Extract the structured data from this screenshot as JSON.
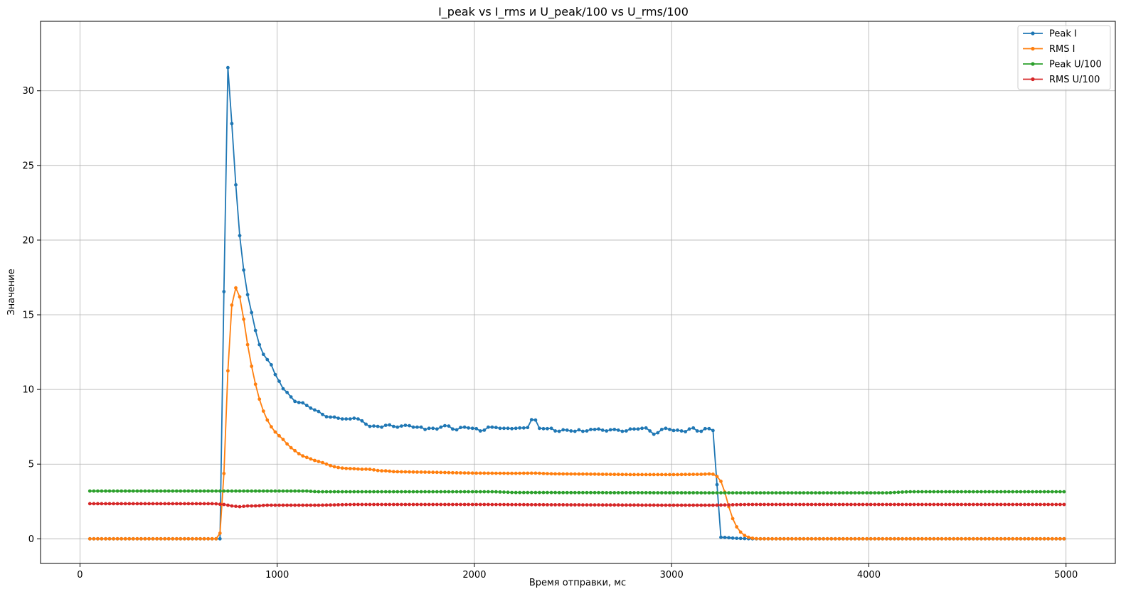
{
  "chart_data": {
    "type": "line",
    "title": "I_peak vs I_rms и U_peak/100 vs U_rms/100",
    "xlabel": "Время отправки, мс",
    "ylabel": "Значение",
    "xlim": [
      -200,
      5250
    ],
    "ylim": [
      -1.65,
      34.65
    ],
    "xticks": [
      0,
      1000,
      2000,
      3000,
      4000,
      5000
    ],
    "xtick_labels": [
      "0",
      "1000",
      "2000",
      "3000",
      "4000",
      "5000"
    ],
    "yticks": [
      0,
      5,
      10,
      15,
      20,
      25,
      30
    ],
    "ytick_labels": [
      "0",
      "5",
      "10",
      "15",
      "20",
      "25",
      "30"
    ],
    "grid": true,
    "legend_position": "upper right",
    "x_start": 50,
    "x_step": 20,
    "series": [
      {
        "name": "Peak I",
        "color": "#1f77b4",
        "keypoints": [
          [
            50,
            0
          ],
          [
            680,
            0
          ],
          [
            700,
            0
          ],
          [
            720,
            0
          ],
          [
            740,
            33.1
          ],
          [
            760,
            30
          ],
          [
            780,
            25.6
          ],
          [
            800,
            21.8
          ],
          [
            820,
            18.8
          ],
          [
            840,
            17.2
          ],
          [
            860,
            15.5
          ],
          [
            880,
            14.8
          ],
          [
            900,
            13.1
          ],
          [
            920,
            12.9
          ],
          [
            940,
            11.8
          ],
          [
            960,
            12.2
          ],
          [
            980,
            11.1
          ],
          [
            1000,
            10.9
          ],
          [
            1020,
            10.2
          ],
          [
            1040,
            9.9
          ],
          [
            1060,
            9.7
          ],
          [
            1080,
            9.3
          ],
          [
            1100,
            9.1
          ],
          [
            1120,
            9.15
          ],
          [
            1140,
            9.05
          ],
          [
            1160,
            8.8
          ],
          [
            1180,
            8.7
          ],
          [
            1200,
            8.55
          ],
          [
            1220,
            8.5
          ],
          [
            1240,
            8.15
          ],
          [
            1260,
            8.2
          ],
          [
            1280,
            8.1
          ],
          [
            1300,
            8.2
          ],
          [
            1320,
            7.95
          ],
          [
            1340,
            8.1
          ],
          [
            1360,
            7.95
          ],
          [
            1380,
            8.1
          ],
          [
            1400,
            8.05
          ],
          [
            1420,
            8.0
          ],
          [
            1440,
            7.8
          ],
          [
            1460,
            7.55
          ],
          [
            1480,
            7.5
          ],
          [
            1500,
            7.6
          ],
          [
            1520,
            7.45
          ],
          [
            1540,
            7.5
          ],
          [
            1560,
            7.7
          ],
          [
            1580,
            7.55
          ],
          [
            1600,
            7.5
          ],
          [
            1620,
            7.45
          ],
          [
            1640,
            7.65
          ],
          [
            1660,
            7.55
          ],
          [
            1680,
            7.6
          ],
          [
            1700,
            7.35
          ],
          [
            1720,
            7.6
          ],
          [
            1740,
            7.35
          ],
          [
            1760,
            7.3
          ],
          [
            1780,
            7.5
          ],
          [
            1800,
            7.3
          ],
          [
            1820,
            7.4
          ],
          [
            1840,
            7.55
          ],
          [
            1860,
            7.6
          ],
          [
            1880,
            7.5
          ],
          [
            1900,
            7.2
          ],
          [
            1920,
            7.4
          ],
          [
            1940,
            7.5
          ],
          [
            1960,
            7.45
          ],
          [
            1980,
            7.4
          ],
          [
            2000,
            7.4
          ],
          [
            2020,
            7.35
          ],
          [
            2040,
            7.1
          ],
          [
            2060,
            7.45
          ],
          [
            2080,
            7.5
          ],
          [
            2100,
            7.45
          ],
          [
            2120,
            7.45
          ],
          [
            2140,
            7.35
          ],
          [
            2160,
            7.45
          ],
          [
            2180,
            7.35
          ],
          [
            2200,
            7.4
          ],
          [
            2220,
            7.4
          ],
          [
            2240,
            7.45
          ],
          [
            2260,
            7.4
          ],
          [
            2280,
            7.5
          ],
          [
            2300,
            8.45
          ],
          [
            2320,
            7.45
          ],
          [
            2340,
            7.35
          ],
          [
            2360,
            7.4
          ],
          [
            2380,
            7.35
          ],
          [
            2400,
            7.45
          ],
          [
            2420,
            7.0
          ],
          [
            2440,
            7.4
          ],
          [
            2460,
            7.2
          ],
          [
            2480,
            7.35
          ],
          [
            2500,
            7.1
          ],
          [
            2520,
            7.3
          ],
          [
            2540,
            7.3
          ],
          [
            2560,
            7.1
          ],
          [
            2580,
            7.35
          ],
          [
            2600,
            7.3
          ],
          [
            2620,
            7.35
          ],
          [
            2640,
            7.35
          ],
          [
            2660,
            7.2
          ],
          [
            2680,
            7.25
          ],
          [
            2700,
            7.35
          ],
          [
            2720,
            7.3
          ],
          [
            2740,
            7.25
          ],
          [
            2760,
            7.15
          ],
          [
            2780,
            7.3
          ],
          [
            2800,
            7.4
          ],
          [
            2820,
            7.3
          ],
          [
            2840,
            7.4
          ],
          [
            2860,
            7.4
          ],
          [
            2880,
            7.45
          ],
          [
            2900,
            7.0
          ],
          [
            2920,
            7.0
          ],
          [
            2940,
            7.2
          ],
          [
            2960,
            7.45
          ],
          [
            2980,
            7.35
          ],
          [
            3000,
            7.3
          ],
          [
            3020,
            7.2
          ],
          [
            3040,
            7.35
          ],
          [
            3060,
            7.1
          ],
          [
            3080,
            7.25
          ],
          [
            3100,
            7.45
          ],
          [
            3120,
            7.4
          ],
          [
            3140,
            7.05
          ],
          [
            3160,
            7.35
          ],
          [
            3180,
            7.4
          ],
          [
            3200,
            7.35
          ],
          [
            3220,
            7.15
          ],
          [
            3240,
            0.1
          ],
          [
            3260,
            0.1
          ],
          [
            3280,
            0.08
          ],
          [
            3300,
            0.06
          ],
          [
            3320,
            0.04
          ],
          [
            3340,
            0.03
          ],
          [
            3360,
            0.02
          ],
          [
            3380,
            0.01
          ],
          [
            3400,
            0
          ],
          [
            5000,
            0
          ]
        ]
      },
      {
        "name": "RMS I",
        "color": "#ff7f0e",
        "keypoints": [
          [
            50,
            0
          ],
          [
            680,
            0
          ],
          [
            700,
            0
          ],
          [
            720,
            0.75
          ],
          [
            740,
            8.0
          ],
          [
            760,
            14.5
          ],
          [
            780,
            16.8
          ],
          [
            800,
            16.8
          ],
          [
            820,
            15.6
          ],
          [
            840,
            13.8
          ],
          [
            860,
            12.2
          ],
          [
            880,
            10.9
          ],
          [
            900,
            9.8
          ],
          [
            920,
            8.9
          ],
          [
            940,
            8.2
          ],
          [
            960,
            7.7
          ],
          [
            980,
            7.3
          ],
          [
            1000,
            7.0
          ],
          [
            1020,
            6.8
          ],
          [
            1040,
            6.5
          ],
          [
            1060,
            6.2
          ],
          [
            1080,
            6.0
          ],
          [
            1100,
            5.8
          ],
          [
            1120,
            5.6
          ],
          [
            1140,
            5.5
          ],
          [
            1160,
            5.4
          ],
          [
            1180,
            5.3
          ],
          [
            1200,
            5.2
          ],
          [
            1220,
            5.15
          ],
          [
            1240,
            5.05
          ],
          [
            1260,
            4.95
          ],
          [
            1280,
            4.85
          ],
          [
            1300,
            4.8
          ],
          [
            1320,
            4.75
          ],
          [
            1340,
            4.72
          ],
          [
            1360,
            4.7
          ],
          [
            1380,
            4.7
          ],
          [
            1400,
            4.68
          ],
          [
            1420,
            4.67
          ],
          [
            1440,
            4.65
          ],
          [
            1460,
            4.68
          ],
          [
            1480,
            4.63
          ],
          [
            1500,
            4.6
          ],
          [
            1520,
            4.55
          ],
          [
            1540,
            4.55
          ],
          [
            1560,
            4.55
          ],
          [
            1580,
            4.5
          ],
          [
            1800,
            4.45
          ],
          [
            2000,
            4.4
          ],
          [
            2200,
            4.38
          ],
          [
            2300,
            4.4
          ],
          [
            2400,
            4.35
          ],
          [
            2600,
            4.33
          ],
          [
            2800,
            4.3
          ],
          [
            3000,
            4.3
          ],
          [
            3150,
            4.32
          ],
          [
            3200,
            4.35
          ],
          [
            3220,
            4.3
          ],
          [
            3240,
            4.05
          ],
          [
            3260,
            3.65
          ],
          [
            3280,
            2.6
          ],
          [
            3300,
            1.7
          ],
          [
            3320,
            1.0
          ],
          [
            3340,
            0.6
          ],
          [
            3360,
            0.3
          ],
          [
            3380,
            0.15
          ],
          [
            3400,
            0.06
          ],
          [
            3420,
            0.02
          ],
          [
            3440,
            0
          ],
          [
            5000,
            0
          ]
        ]
      },
      {
        "name": "Peak U/100",
        "color": "#2ca02c",
        "keypoints": [
          [
            50,
            3.2
          ],
          [
            1150,
            3.2
          ],
          [
            1200,
            3.15
          ],
          [
            2100,
            3.15
          ],
          [
            2200,
            3.1
          ],
          [
            3200,
            3.08
          ],
          [
            3400,
            3.08
          ],
          [
            4100,
            3.08
          ],
          [
            4200,
            3.15
          ],
          [
            5000,
            3.15
          ]
        ]
      },
      {
        "name": "RMS U/100",
        "color": "#d62728",
        "keypoints": [
          [
            50,
            2.35
          ],
          [
            680,
            2.35
          ],
          [
            700,
            2.33
          ],
          [
            720,
            2.3
          ],
          [
            740,
            2.3
          ],
          [
            760,
            2.2
          ],
          [
            780,
            2.2
          ],
          [
            800,
            2.15
          ],
          [
            820,
            2.15
          ],
          [
            840,
            2.2
          ],
          [
            880,
            2.2
          ],
          [
            920,
            2.22
          ],
          [
            940,
            2.25
          ],
          [
            1000,
            2.25
          ],
          [
            1200,
            2.25
          ],
          [
            1400,
            2.3
          ],
          [
            2000,
            2.3
          ],
          [
            3000,
            2.25
          ],
          [
            3200,
            2.25
          ],
          [
            3400,
            2.3
          ],
          [
            5000,
            2.3
          ]
        ]
      }
    ]
  }
}
